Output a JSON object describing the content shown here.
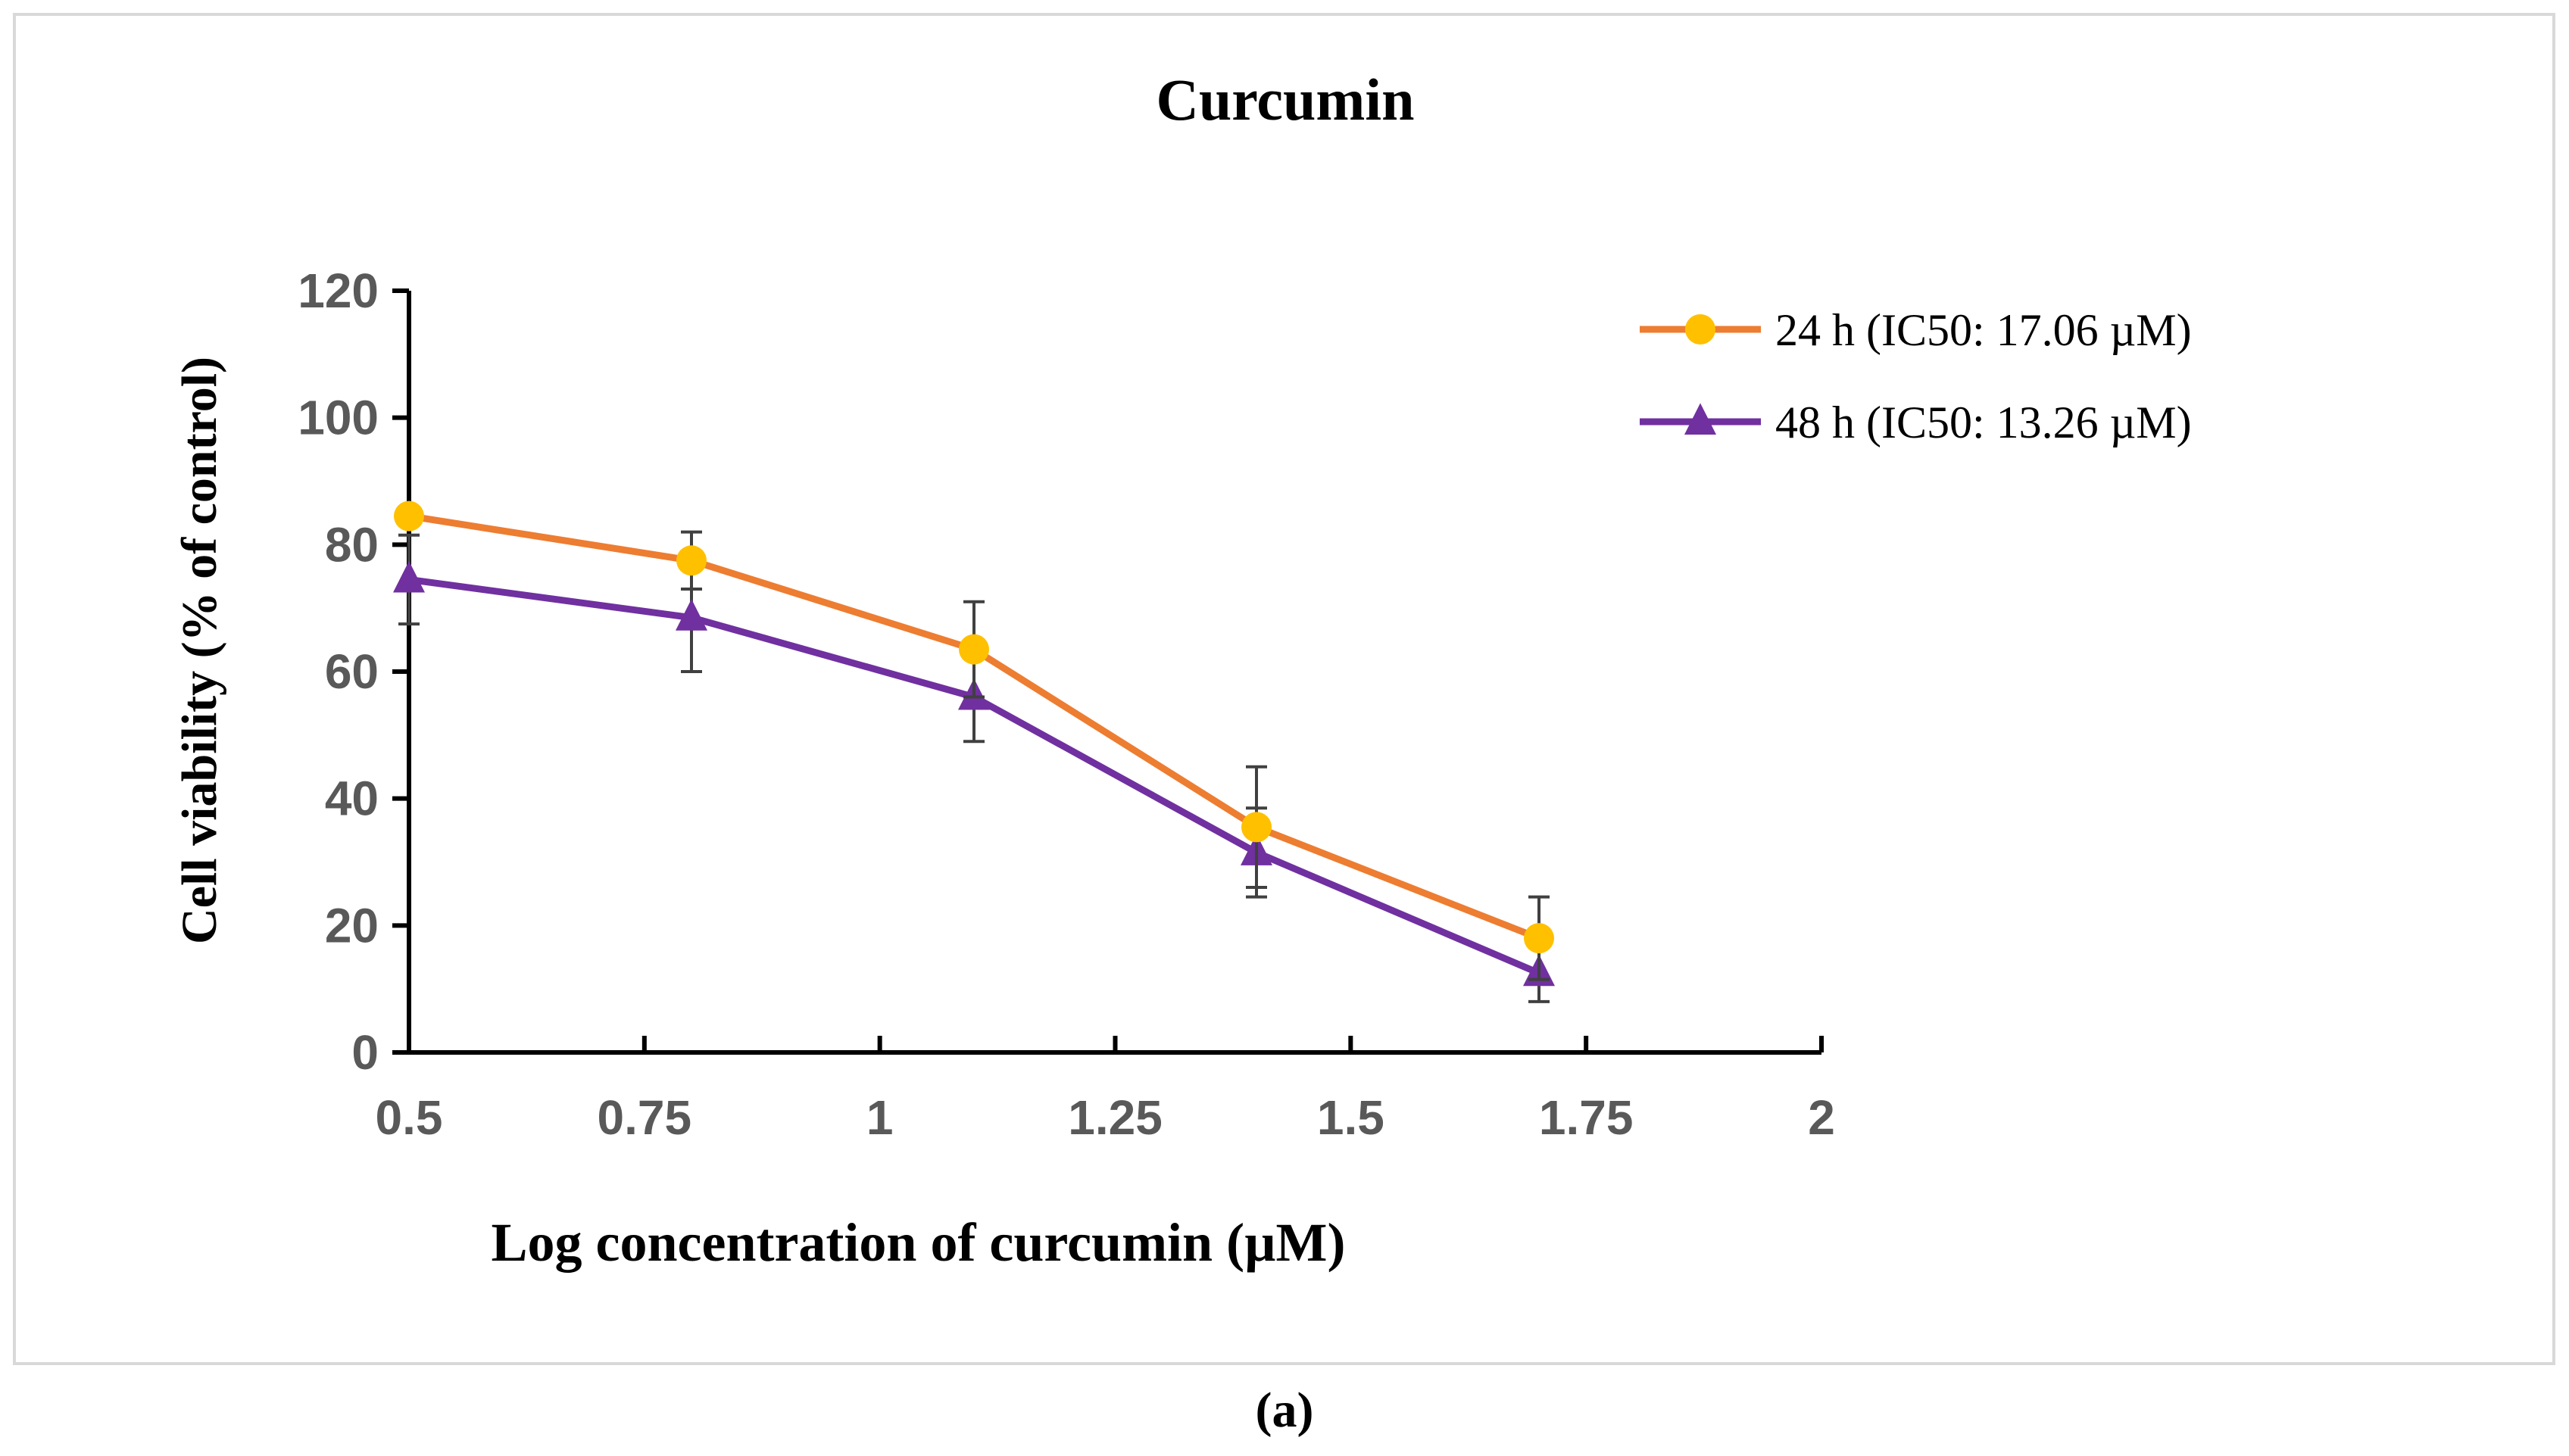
{
  "panel_label": "(a)",
  "colors": {
    "series_24h": "#ed7d31",
    "marker_24h": "#ffc000",
    "series_48h": "#7030a0",
    "axis": "#000000",
    "tick_label": "#595959",
    "error_bar": "#404040",
    "frame": "#d9d9d9"
  },
  "chart_data": {
    "type": "line",
    "title": "Curcumin",
    "xlabel": "Log concentration of curcumin  (µM)",
    "ylabel": "Cell viability (% of control)",
    "xlim": [
      0.5,
      2
    ],
    "ylim": [
      0,
      120
    ],
    "x_ticks": [
      0.5,
      0.75,
      1,
      1.25,
      1.5,
      1.75,
      2
    ],
    "x_tick_labels": [
      "0.5",
      "0.75",
      "1",
      "1.25",
      "1.5",
      "1.75",
      "2"
    ],
    "y_ticks": [
      0,
      20,
      40,
      60,
      80,
      100,
      120
    ],
    "y_tick_labels": [
      "0",
      "20",
      "40",
      "60",
      "80",
      "100",
      "120"
    ],
    "grid": false,
    "legend_position": "top-right",
    "series": [
      {
        "name": "24 h (IC50: 17.06  µM)",
        "marker": "circle",
        "x": [
          0.5,
          0.8,
          1.1,
          1.4,
          1.7
        ],
        "y": [
          84.5,
          77.5,
          63.5,
          35.5,
          18
        ],
        "error": [
          0,
          4.5,
          7.5,
          9.5,
          6.5
        ]
      },
      {
        "name": "48 h (IC50: 13.26  µM)",
        "marker": "triangle",
        "x": [
          0.5,
          0.8,
          1.1,
          1.4,
          1.7
        ],
        "y": [
          74.5,
          68.5,
          56,
          31.5,
          12.5
        ],
        "error": [
          7,
          8.5,
          7,
          7,
          4.5
        ]
      }
    ]
  }
}
